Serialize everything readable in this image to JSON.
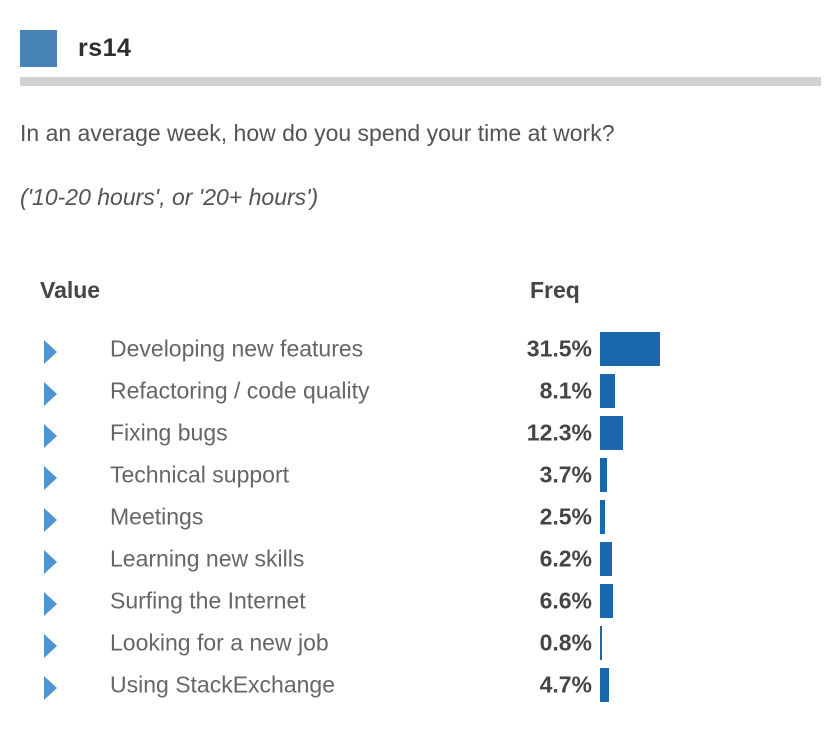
{
  "header": {
    "title": "rs14"
  },
  "question": {
    "text": "In an average week, how do you spend your time at work?",
    "subtitle": "('10-20 hours', or '20+ hours')"
  },
  "table": {
    "value_header": "Value",
    "freq_header": "Freq",
    "rows": [
      {
        "label": "Developing new features",
        "freq": "31.5%",
        "value": 31.5
      },
      {
        "label": "Refactoring / code quality",
        "freq": "8.1%",
        "value": 8.1
      },
      {
        "label": "Fixing bugs",
        "freq": "12.3%",
        "value": 12.3
      },
      {
        "label": "Technical support",
        "freq": "3.7%",
        "value": 3.7
      },
      {
        "label": "Meetings",
        "freq": "2.5%",
        "value": 2.5
      },
      {
        "label": "Learning new skills",
        "freq": "6.2%",
        "value": 6.2
      },
      {
        "label": "Surfing the Internet",
        "freq": "6.6%",
        "value": 6.6
      },
      {
        "label": "Looking for a new job",
        "freq": "0.8%",
        "value": 0.8
      },
      {
        "label": "Using StackExchange",
        "freq": "4.7%",
        "value": 4.7
      }
    ]
  },
  "colors": {
    "header_square": "#4783B5",
    "row_arrow": "#4E95D2",
    "freq_bar": "#1A67AD",
    "divider": "#D2D2D2",
    "title_text": "#2E2E2E",
    "question_text": "#535353",
    "label_text": "#666666",
    "strong_text": "#454545"
  },
  "chart_data": {
    "type": "bar",
    "orientation": "horizontal",
    "title": "In an average week, how do you spend your time at work?",
    "subtitle": "('10-20 hours', or '20+ hours')",
    "categories": [
      "Developing new features",
      "Refactoring / code quality",
      "Fixing bugs",
      "Technical support",
      "Meetings",
      "Learning new skills",
      "Surfing the Internet",
      "Looking for a new job",
      "Using StackExchange"
    ],
    "values": [
      31.5,
      8.1,
      12.3,
      3.7,
      2.5,
      6.2,
      6.6,
      0.8,
      4.7
    ],
    "value_unit": "%",
    "xlabel": "Freq",
    "ylabel": "Value",
    "legend": false,
    "grid": false,
    "bar_color": "#1A67AD"
  }
}
